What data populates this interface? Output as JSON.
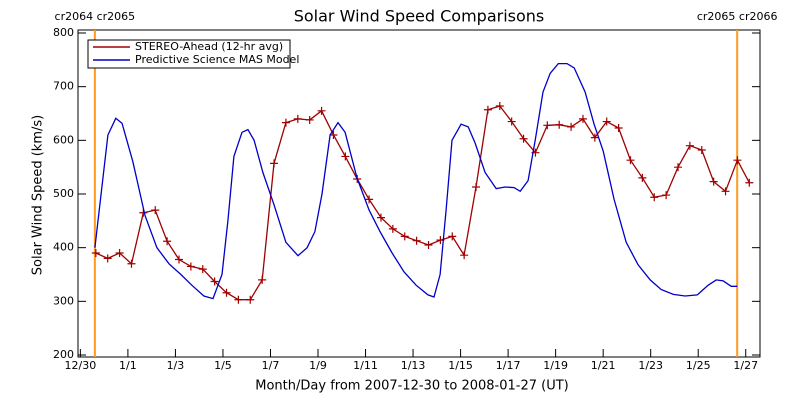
{
  "chart_data": {
    "type": "line",
    "title": "Solar Wind Speed Comparisons",
    "x_label": "Month/Day from 2007-12-30 to 2008-01-27 (UT)",
    "y_label": "Solar Wind Speed (km/s)",
    "xlim": [
      -0.1,
      28.6
    ],
    "ylim": [
      200,
      800
    ],
    "xticks": [
      {
        "value": 0,
        "label": "12/30"
      },
      {
        "value": 2,
        "label": "1/1"
      },
      {
        "value": 4,
        "label": "1/3"
      },
      {
        "value": 6,
        "label": "1/5"
      },
      {
        "value": 8,
        "label": "1/7"
      },
      {
        "value": 10,
        "label": "1/9"
      },
      {
        "value": 12,
        "label": "1/11"
      },
      {
        "value": 14,
        "label": "1/13"
      },
      {
        "value": 16,
        "label": "1/15"
      },
      {
        "value": 18,
        "label": "1/17"
      },
      {
        "value": 20,
        "label": "1/19"
      },
      {
        "value": 22,
        "label": "1/21"
      },
      {
        "value": 24,
        "label": "1/23"
      },
      {
        "value": 26,
        "label": "1/25"
      },
      {
        "value": 28,
        "label": "1/27"
      }
    ],
    "yticks": [
      200,
      300,
      400,
      500,
      600,
      700,
      800
    ],
    "legend": "upper left",
    "annotations": [
      {
        "x": 0.61,
        "label": "cr2064 cr2065",
        "color": "#ff9a1e"
      },
      {
        "x": 27.64,
        "label": "cr2065 cr2066",
        "color": "#ff9a1e"
      }
    ],
    "series": [
      {
        "name": "STEREO-Ahead (12-hr avg)",
        "color": "#a00000",
        "marker": "+",
        "x": [
          0.65,
          1.15,
          1.65,
          2.15,
          2.65,
          3.15,
          3.65,
          4.15,
          4.65,
          5.15,
          5.65,
          6.15,
          6.65,
          7.15,
          7.65,
          8.15,
          8.65,
          9.15,
          9.65,
          10.15,
          10.65,
          11.15,
          11.65,
          12.15,
          12.65,
          13.15,
          13.65,
          14.15,
          14.65,
          15.15,
          15.65,
          16.15,
          16.65,
          17.15,
          17.65,
          18.15,
          18.65,
          19.15,
          19.65,
          20.15,
          20.65,
          21.15,
          21.65,
          22.15,
          22.65,
          23.15,
          23.65,
          24.15,
          24.65,
          25.15,
          25.65,
          26.15,
          26.65,
          27.15,
          27.65,
          28.15
        ],
        "values": [
          390,
          380,
          390,
          370,
          465,
          470,
          412,
          378,
          365,
          360,
          337,
          316,
          303,
          303,
          340,
          557,
          633,
          640,
          638,
          655,
          610,
          570,
          528,
          490,
          456,
          435,
          421,
          413,
          405,
          414,
          421,
          386,
          513,
          657,
          664,
          635,
          603,
          577,
          628,
          629,
          625,
          640,
          605,
          635,
          623,
          563,
          530,
          494,
          498,
          550,
          590,
          582,
          523,
          505,
          563,
          521
        ]
      },
      {
        "name": "Predictive Science MAS Model",
        "color": "#0000c8",
        "x": [
          0.61,
          1.16,
          1.49,
          1.75,
          2.21,
          2.72,
          3.22,
          3.73,
          4.23,
          4.69,
          5.2,
          5.58,
          5.96,
          6.21,
          6.46,
          6.8,
          7.05,
          7.31,
          7.68,
          8.15,
          8.65,
          9.16,
          9.54,
          9.87,
          10.17,
          10.51,
          10.84,
          11.14,
          11.64,
          12.15,
          12.61,
          13.12,
          13.62,
          14.13,
          14.63,
          14.88,
          15.14,
          15.39,
          15.64,
          16.02,
          16.32,
          16.61,
          17.03,
          17.5,
          17.87,
          18.25,
          18.51,
          18.84,
          19.14,
          19.47,
          19.77,
          20.11,
          20.48,
          20.78,
          21.24,
          21.62,
          22.0,
          22.46,
          22.97,
          23.47,
          23.98,
          24.44,
          24.95,
          25.45,
          25.96,
          26.42,
          26.76,
          27.05,
          27.39,
          27.64
        ],
        "values": [
          400,
          610,
          641,
          632,
          560,
          460,
          400,
          370,
          350,
          330,
          310,
          305,
          350,
          450,
          570,
          615,
          620,
          600,
          540,
          480,
          410,
          385,
          400,
          430,
          500,
          610,
          633,
          615,
          530,
          470,
          430,
          390,
          355,
          330,
          312,
          308,
          350,
          470,
          600,
          630,
          625,
          595,
          540,
          510,
          513,
          512,
          505,
          525,
          600,
          690,
          725,
          743,
          743,
          735,
          690,
          630,
          580,
          490,
          410,
          368,
          340,
          322,
          313,
          310,
          312,
          330,
          340,
          338,
          328,
          328
        ]
      }
    ]
  }
}
